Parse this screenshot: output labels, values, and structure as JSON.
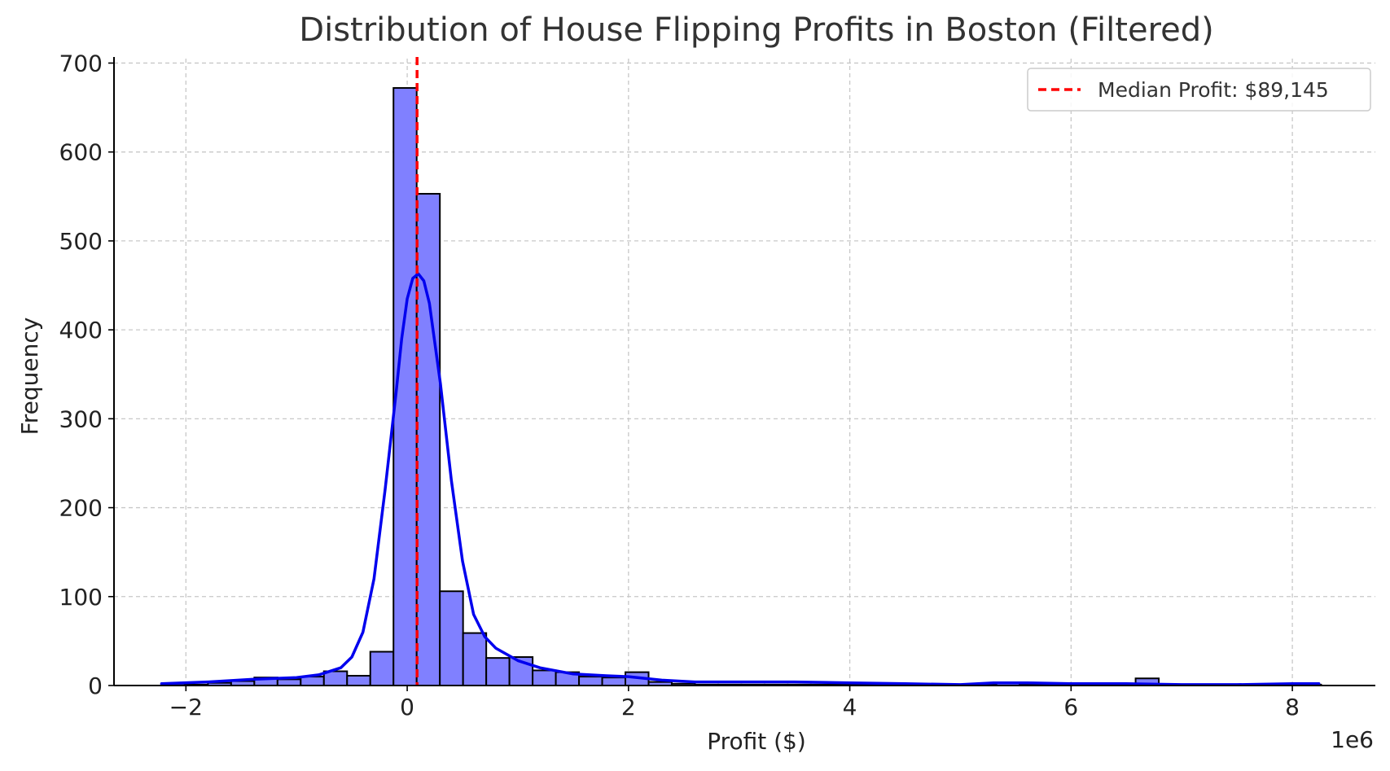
{
  "chart_data": {
    "type": "bar",
    "title": "Distribution of House Flipping Profits in Boston (Filtered)",
    "xlabel": "Profit ($)",
    "ylabel": "Frequency",
    "x_offset_label": "1e6",
    "xlim": [
      -2.65,
      8.75
    ],
    "ylim": [
      0,
      705
    ],
    "x_ticks": [
      -2,
      0,
      2,
      4,
      6,
      8
    ],
    "x_tick_labels": [
      "−2",
      "0",
      "2",
      "4",
      "6",
      "8"
    ],
    "y_ticks": [
      0,
      100,
      200,
      300,
      400,
      500,
      600,
      700
    ],
    "y_tick_labels": [
      "0",
      "100",
      "200",
      "300",
      "400",
      "500",
      "600",
      "700"
    ],
    "grid": true,
    "bin_start": -2.22,
    "bin_width": 0.2096,
    "counts": [
      2,
      1,
      3,
      5,
      9,
      7,
      10,
      16,
      11,
      38,
      672,
      553,
      106,
      59,
      31,
      32,
      17,
      15,
      10,
      9,
      15,
      4,
      2,
      1,
      1,
      1,
      1,
      1,
      1,
      1,
      1,
      1,
      1,
      1,
      1,
      1,
      3,
      1,
      1,
      1,
      1,
      1,
      8,
      1,
      1,
      1,
      1,
      1,
      1,
      1
    ],
    "bar_color": "#8080ff",
    "bar_edge_color": "#000000",
    "kde": {
      "name": "KDE",
      "color": "#0000ee",
      "x": [
        -2.22,
        -1.8,
        -1.4,
        -1.0,
        -0.8,
        -0.6,
        -0.5,
        -0.4,
        -0.3,
        -0.2,
        -0.1,
        -0.05,
        0.0,
        0.05,
        0.1,
        0.15,
        0.2,
        0.3,
        0.4,
        0.5,
        0.6,
        0.7,
        0.8,
        1.0,
        1.2,
        1.5,
        1.8,
        2.0,
        2.3,
        2.6,
        3.0,
        3.5,
        4.0,
        4.5,
        5.0,
        5.3,
        5.6,
        6.0,
        6.5,
        7.0,
        7.5,
        8.0,
        8.24
      ],
      "y": [
        2,
        4,
        7,
        9,
        12,
        20,
        32,
        60,
        120,
        220,
        330,
        390,
        435,
        458,
        463,
        455,
        430,
        340,
        230,
        140,
        80,
        55,
        42,
        28,
        20,
        13,
        11,
        10,
        6,
        4,
        4,
        4,
        3,
        2,
        1,
        3,
        3,
        2,
        2,
        1,
        1,
        2,
        2
      ]
    },
    "median_line": {
      "x": 0.089145,
      "label": "Median Profit: $89,145",
      "color": "#ff0000"
    },
    "legend_position": "upper right"
  }
}
